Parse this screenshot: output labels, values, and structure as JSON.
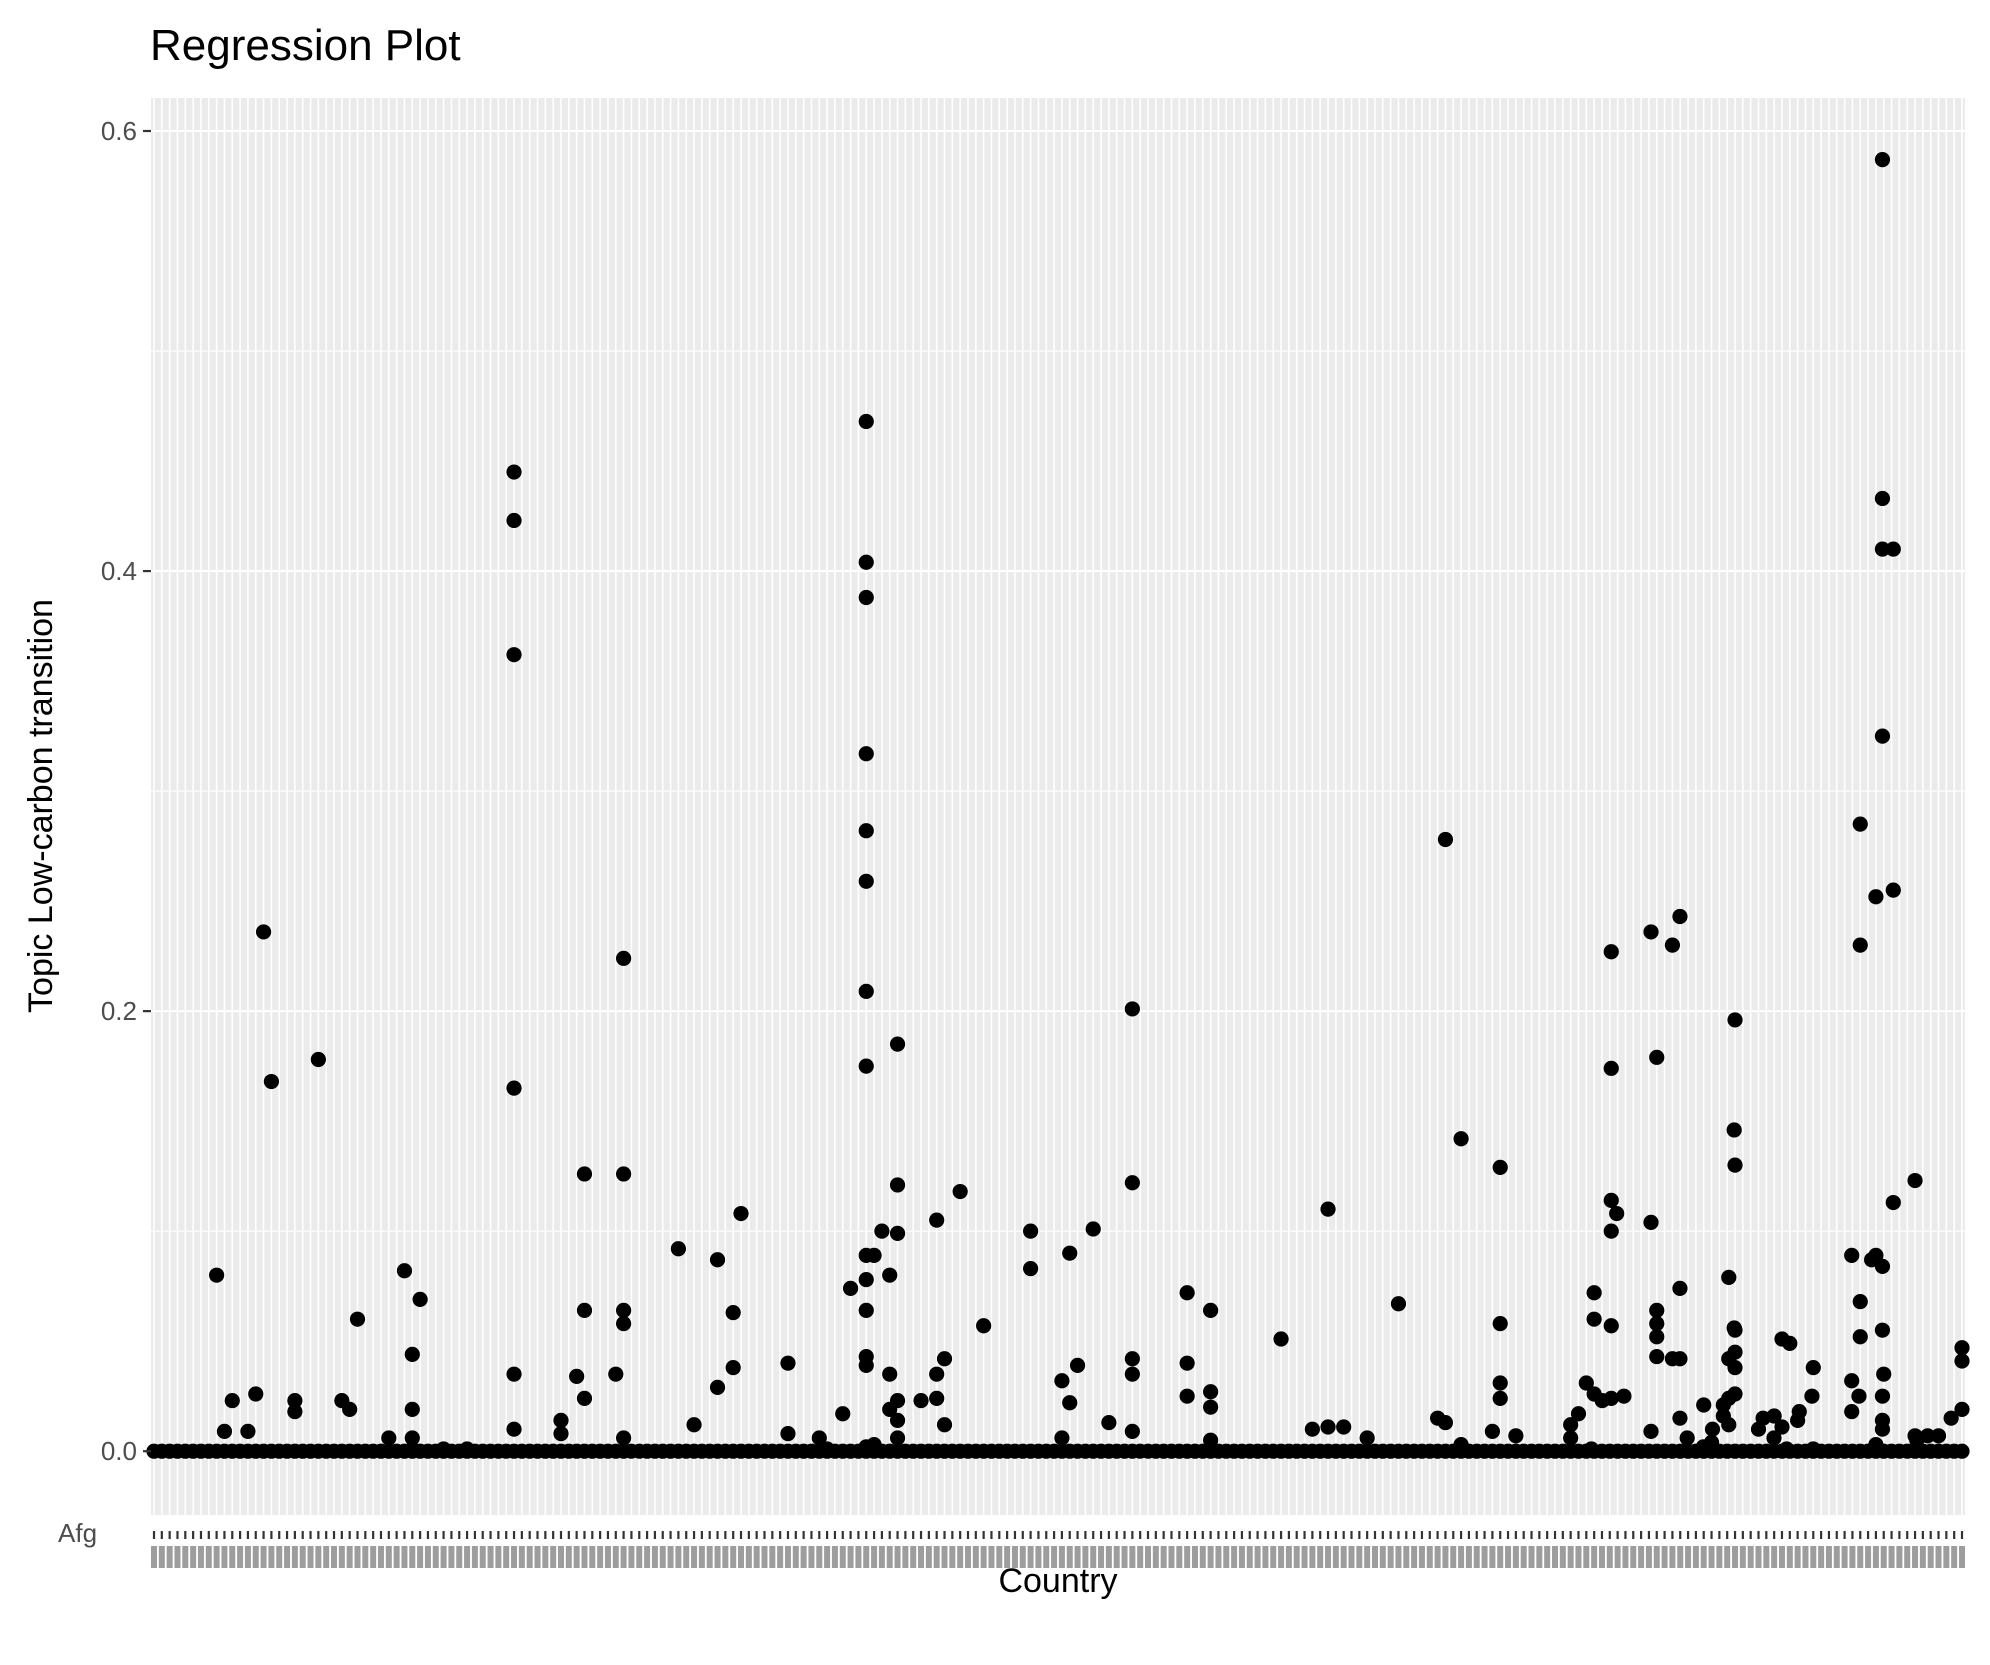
{
  "chart_data": {
    "type": "scatter",
    "title": "Regression Plot",
    "xlabel": "Country",
    "ylabel": "Topic Low-carbon transition",
    "ylim": [
      -0.029,
      0.615
    ],
    "yticks": [
      0.0,
      0.2,
      0.4,
      0.6
    ],
    "ytick_labels": [
      "0.0",
      "0.2",
      "0.4",
      "0.6"
    ],
    "grid": true,
    "legend": "none",
    "first_x_tick_label": "Afg",
    "n_categories": 232,
    "point_color": "#000000",
    "panel_color": "#ebebeb",
    "zero_runs": [
      [
        0,
        232
      ]
    ],
    "points": [
      [
        8,
        0.08
      ],
      [
        9,
        0.009
      ],
      [
        10,
        0.023
      ],
      [
        12,
        0.009
      ],
      [
        13,
        0.026
      ],
      [
        14,
        0.236
      ],
      [
        15,
        0.168
      ],
      [
        18,
        0.023
      ],
      [
        18,
        0.018
      ],
      [
        21,
        0.178
      ],
      [
        24,
        0.023
      ],
      [
        25,
        0.019
      ],
      [
        26,
        0.06
      ],
      [
        30,
        0.006
      ],
      [
        32,
        0.082
      ],
      [
        33,
        0.044
      ],
      [
        33,
        0.019
      ],
      [
        33,
        0.006
      ],
      [
        33,
        0.001
      ],
      [
        34,
        0.069
      ],
      [
        37,
        0.001
      ],
      [
        40,
        0.001
      ],
      [
        46,
        0.445
      ],
      [
        46,
        0.423
      ],
      [
        46,
        0.362
      ],
      [
        46,
        0.165
      ],
      [
        46,
        0.035
      ],
      [
        46,
        0.01
      ],
      [
        52,
        0.014
      ],
      [
        52,
        0.008
      ],
      [
        54,
        0.034
      ],
      [
        55,
        0.126
      ],
      [
        55,
        0.064
      ],
      [
        55,
        0.024
      ],
      [
        59,
        0.035
      ],
      [
        60,
        0.224
      ],
      [
        60,
        0.126
      ],
      [
        60,
        0.064
      ],
      [
        60,
        0.058
      ],
      [
        60,
        0.006
      ],
      [
        67,
        0.092
      ],
      [
        69,
        0.012
      ],
      [
        72,
        0.087
      ],
      [
        72,
        0.029
      ],
      [
        74,
        0.063
      ],
      [
        74,
        0.038
      ],
      [
        75,
        0.108
      ],
      [
        81,
        0.04
      ],
      [
        81,
        0.008
      ],
      [
        85,
        0.006
      ],
      [
        86,
        0.001
      ],
      [
        88,
        0.017
      ],
      [
        89,
        0.074
      ],
      [
        91,
        0.468
      ],
      [
        91,
        0.404
      ],
      [
        91,
        0.388
      ],
      [
        91,
        0.317
      ],
      [
        91,
        0.282
      ],
      [
        91,
        0.259
      ],
      [
        91,
        0.209
      ],
      [
        91,
        0.175
      ],
      [
        91,
        0.089
      ],
      [
        91,
        0.078
      ],
      [
        91,
        0.064
      ],
      [
        91,
        0.043
      ],
      [
        91,
        0.039
      ],
      [
        91,
        0.002
      ],
      [
        92,
        0.089
      ],
      [
        92,
        0.003
      ],
      [
        93,
        0.1
      ],
      [
        94,
        0.08
      ],
      [
        94,
        0.035
      ],
      [
        94,
        0.019
      ],
      [
        95,
        0.185
      ],
      [
        95,
        0.121
      ],
      [
        95,
        0.099
      ],
      [
        95,
        0.023
      ],
      [
        95,
        0.014
      ],
      [
        95,
        0.006
      ],
      [
        98,
        0.023
      ],
      [
        100,
        0.105
      ],
      [
        100,
        0.035
      ],
      [
        100,
        0.024
      ],
      [
        101,
        0.042
      ],
      [
        101,
        0.012
      ],
      [
        103,
        0.118
      ],
      [
        106,
        0.057
      ],
      [
        112,
        0.1
      ],
      [
        112,
        0.083
      ],
      [
        116,
        0.032
      ],
      [
        116,
        0.006
      ],
      [
        117,
        0.09
      ],
      [
        117,
        0.022
      ],
      [
        118,
        0.039
      ],
      [
        120,
        0.101
      ],
      [
        122,
        0.013
      ],
      [
        125,
        0.201
      ],
      [
        125,
        0.122
      ],
      [
        125,
        0.042
      ],
      [
        125,
        0.035
      ],
      [
        125,
        0.009
      ],
      [
        132,
        0.072
      ],
      [
        132,
        0.04
      ],
      [
        132,
        0.025
      ],
      [
        135,
        0.064
      ],
      [
        135,
        0.027
      ],
      [
        135,
        0.02
      ],
      [
        135,
        0.005
      ],
      [
        144,
        0.051
      ],
      [
        148,
        0.01
      ],
      [
        150,
        0.11
      ],
      [
        150,
        0.011
      ],
      [
        152,
        0.011
      ],
      [
        155,
        0.006
      ],
      [
        159,
        0.067
      ],
      [
        164,
        0.015
      ],
      [
        165,
        0.278
      ],
      [
        165,
        0.013
      ],
      [
        167,
        0.142
      ],
      [
        167,
        0.003
      ],
      [
        171,
        0.009
      ],
      [
        172,
        0.129
      ],
      [
        172,
        0.058
      ],
      [
        172,
        0.031
      ],
      [
        172,
        0.024
      ],
      [
        174,
        0.007
      ],
      [
        181,
        0.012
      ],
      [
        181,
        0.006
      ],
      [
        182,
        0.017
      ],
      [
        183,
        0.031
      ],
      [
        184,
        0.072
      ],
      [
        184,
        0.06
      ],
      [
        184,
        0.026
      ],
      [
        192,
        0.179
      ],
      [
        192,
        0.064
      ],
      [
        192,
        0.058
      ],
      [
        192,
        0.052
      ],
      [
        192,
        0.043
      ],
      [
        194,
        0.23
      ],
      [
        194,
        0.042
      ],
      [
        198,
        0.021
      ],
      [
        199,
        0.004
      ],
      [
        202,
        0.196
      ],
      [
        202,
        0.13
      ],
      [
        202,
        0.055
      ],
      [
        202,
        0.045
      ],
      [
        202,
        0.038
      ],
      [
        202,
        0.026
      ],
      [
        205,
        0.01
      ],
      [
        207,
        0.016
      ],
      [
        208,
        0.051
      ],
      [
        208,
        0.011
      ],
      [
        209,
        0.049
      ],
      [
        210,
        0.014
      ],
      [
        212,
        0.038
      ],
      [
        212,
        0.001
      ],
      [
        218,
        0.285
      ],
      [
        218,
        0.23
      ],
      [
        218,
        0.068
      ],
      [
        218,
        0.052
      ],
      [
        220,
        0.252
      ],
      [
        220,
        0.089
      ],
      [
        220,
        0.003
      ],
      [
        221,
        0.035
      ],
      [
        225,
        0.123
      ],
      [
        225,
        0.007
      ],
      [
        228,
        0.007
      ],
      [
        231,
        0.047
      ]
    ],
    "right_block": {
      "x_scale_note": "positions continue on the shared categorical axis",
      "points": [
        [
          0.795,
          0.001
        ],
        [
          0.801,
          0.023
        ],
        [
          0.806,
          0.227
        ],
        [
          0.806,
          0.174
        ],
        [
          0.806,
          0.114
        ],
        [
          0.806,
          0.1
        ],
        [
          0.806,
          0.057
        ],
        [
          0.806,
          0.024
        ],
        [
          0.809,
          0.108
        ],
        [
          0.813,
          0.025
        ],
        [
          0.828,
          0.104
        ],
        [
          0.828,
          0.236
        ],
        [
          0.828,
          0.009
        ],
        [
          0.844,
          0.243
        ],
        [
          0.844,
          0.074
        ],
        [
          0.844,
          0.042
        ],
        [
          0.844,
          0.015
        ],
        [
          0.848,
          0.006
        ],
        [
          0.857,
          0.002
        ],
        [
          0.862,
          0.01
        ],
        [
          0.868,
          0.021
        ],
        [
          0.868,
          0.016
        ],
        [
          0.871,
          0.079
        ],
        [
          0.871,
          0.042
        ],
        [
          0.871,
          0.024
        ],
        [
          0.871,
          0.012
        ],
        [
          0.874,
          0.146
        ],
        [
          0.874,
          0.056
        ],
        [
          0.89,
          0.015
        ],
        [
          0.896,
          0.006
        ],
        [
          0.903,
          0.001
        ],
        [
          0.91,
          0.018
        ],
        [
          0.917,
          0.025
        ],
        [
          0.939,
          0.032
        ],
        [
          0.939,
          0.089
        ],
        [
          0.939,
          0.018
        ],
        [
          0.943,
          0.025
        ],
        [
          0.95,
          0.087
        ],
        [
          0.956,
          0.587
        ],
        [
          0.956,
          0.433
        ],
        [
          0.956,
          0.41
        ],
        [
          0.956,
          0.325
        ],
        [
          0.956,
          0.084
        ],
        [
          0.956,
          0.055
        ],
        [
          0.956,
          0.025
        ],
        [
          0.956,
          0.014
        ],
        [
          0.956,
          0.01
        ],
        [
          0.962,
          0.41
        ],
        [
          0.962,
          0.255
        ],
        [
          0.962,
          0.113
        ],
        [
          0.975,
          0.005
        ],
        [
          0.981,
          0.007
        ],
        [
          0.994,
          0.015
        ],
        [
          1.0,
          0.019
        ],
        [
          1.0,
          0.041
        ]
      ]
    }
  }
}
